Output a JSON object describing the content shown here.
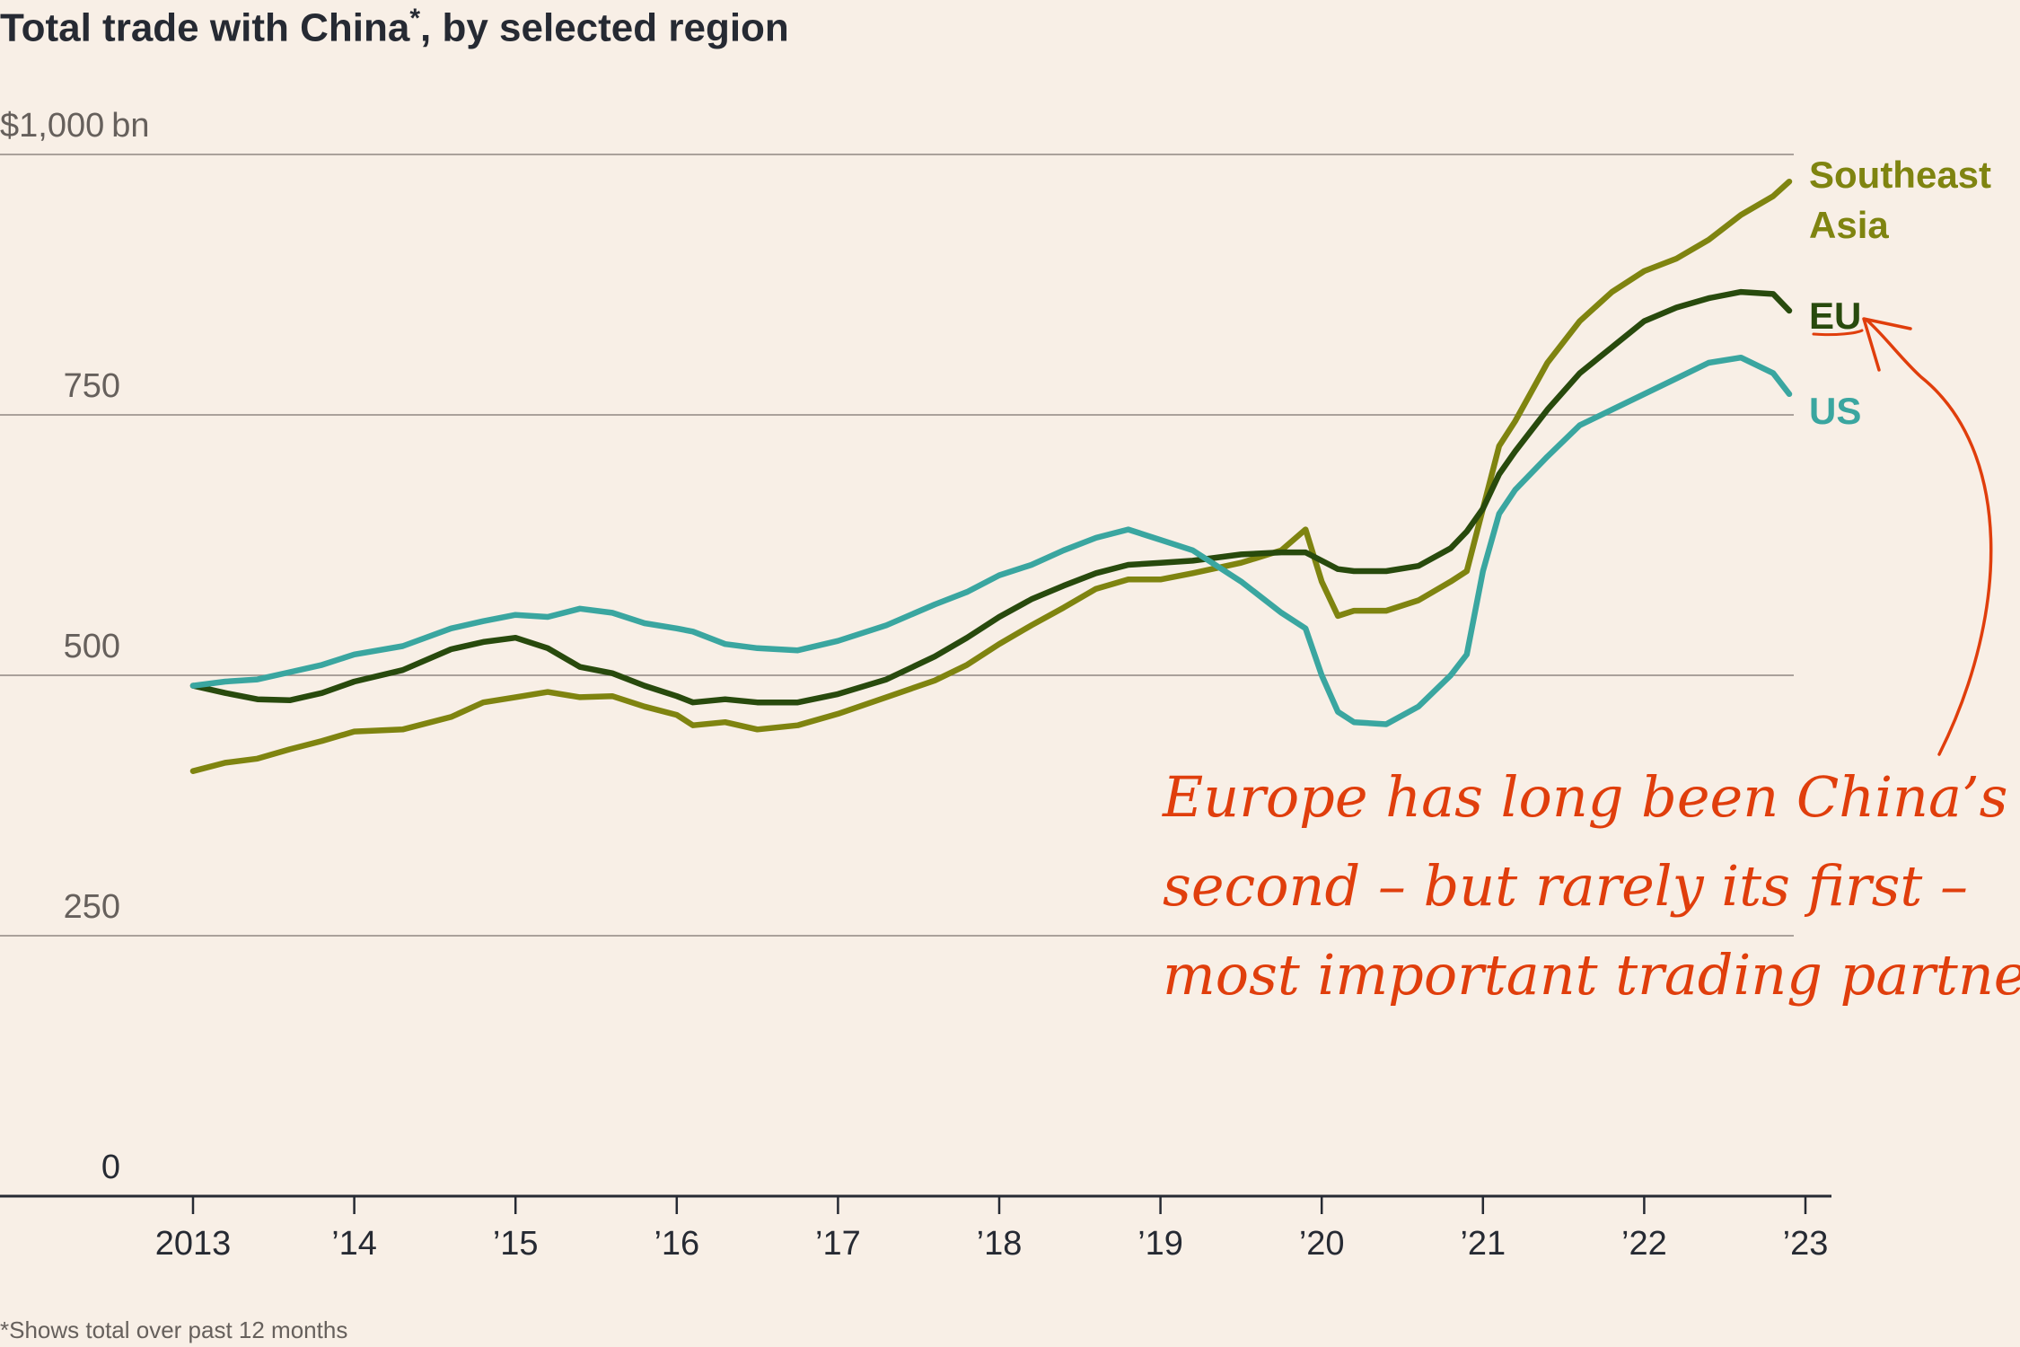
{
  "title": "Total trade with China",
  "title_mark": "*",
  "title_suffix": ", by selected region",
  "footnote": "*Shows total over past 12 months",
  "annotation_lines": [
    "Europe has long been China’s",
    "second – but rarely its first –",
    "most important trading partner"
  ],
  "colors": {
    "background": "#f8efe6",
    "southeast_asia": "#7f8410",
    "eu": "#284a0d",
    "us": "#3aa6a0",
    "annotation": "#e03e0c",
    "grid": "#8f8782",
    "axis": "#262a33",
    "tick_text": "#66605c"
  },
  "chart_data": {
    "type": "line",
    "title": "Total trade with China*, by selected region",
    "ylabel": "$bn",
    "xlabel": "",
    "ylim": [
      0,
      1000
    ],
    "xlim": [
      2013,
      2023
    ],
    "y_ticks": [
      {
        "value": 0,
        "label": "0"
      },
      {
        "value": 250,
        "label": "250"
      },
      {
        "value": 500,
        "label": "500"
      },
      {
        "value": 750,
        "label": "750"
      },
      {
        "value": 1000,
        "label": "$1,000",
        "unit": "bn"
      }
    ],
    "x_ticks": [
      {
        "value": 2013,
        "label": "2013"
      },
      {
        "value": 2014,
        "label": "’14"
      },
      {
        "value": 2015,
        "label": "’15"
      },
      {
        "value": 2016,
        "label": "’16"
      },
      {
        "value": 2017,
        "label": "’17"
      },
      {
        "value": 2018,
        "label": "’18"
      },
      {
        "value": 2019,
        "label": "’19"
      },
      {
        "value": 2020,
        "label": "’20"
      },
      {
        "value": 2021,
        "label": "’21"
      },
      {
        "value": 2022,
        "label": "’22"
      },
      {
        "value": 2023,
        "label": "’23"
      }
    ],
    "grid": true,
    "series": [
      {
        "name": "Southeast Asia",
        "label_lines": [
          "Southeast",
          "Asia"
        ],
        "color": "#7f8410",
        "x": [
          2013.0,
          2013.2,
          2013.4,
          2013.6,
          2013.8,
          2014.0,
          2014.3,
          2014.6,
          2014.8,
          2015.0,
          2015.2,
          2015.4,
          2015.6,
          2015.8,
          2016.0,
          2016.1,
          2016.3,
          2016.5,
          2016.75,
          2017.0,
          2017.3,
          2017.6,
          2017.8,
          2018.0,
          2018.2,
          2018.4,
          2018.6,
          2018.8,
          2019.0,
          2019.2,
          2019.5,
          2019.75,
          2019.9,
          2020.0,
          2020.1,
          2020.2,
          2020.4,
          2020.6,
          2020.8,
          2020.9,
          2021.0,
          2021.1,
          2021.2,
          2021.4,
          2021.6,
          2021.8,
          2022.0,
          2022.2,
          2022.4,
          2022.6,
          2022.8,
          2022.9
        ],
        "values": [
          408,
          416,
          420,
          429,
          437,
          446,
          448,
          460,
          474,
          479,
          484,
          479,
          480,
          470,
          462,
          452,
          455,
          448,
          452,
          463,
          479,
          495,
          510,
          530,
          548,
          565,
          583,
          592,
          592,
          598,
          608,
          620,
          640,
          590,
          557,
          562,
          562,
          572,
          590,
          600,
          660,
          720,
          744,
          800,
          840,
          868,
          888,
          900,
          918,
          942,
          960,
          974
        ]
      },
      {
        "name": "EU",
        "label_lines": [
          "EU"
        ],
        "color": "#284a0d",
        "x": [
          2013.0,
          2013.2,
          2013.4,
          2013.6,
          2013.8,
          2014.0,
          2014.3,
          2014.6,
          2014.8,
          2015.0,
          2015.2,
          2015.4,
          2015.6,
          2015.8,
          2016.0,
          2016.1,
          2016.3,
          2016.5,
          2016.75,
          2017.0,
          2017.3,
          2017.6,
          2017.8,
          2018.0,
          2018.2,
          2018.4,
          2018.6,
          2018.8,
          2019.0,
          2019.2,
          2019.5,
          2019.75,
          2019.9,
          2020.0,
          2020.1,
          2020.2,
          2020.4,
          2020.6,
          2020.8,
          2020.9,
          2021.0,
          2021.1,
          2021.2,
          2021.4,
          2021.6,
          2021.8,
          2022.0,
          2022.2,
          2022.4,
          2022.6,
          2022.8,
          2022.9
        ],
        "values": [
          490,
          483,
          477,
          476,
          483,
          494,
          505,
          525,
          532,
          536,
          526,
          508,
          502,
          490,
          480,
          474,
          477,
          474,
          474,
          482,
          496,
          518,
          536,
          556,
          573,
          586,
          598,
          606,
          608,
          610,
          616,
          618,
          618,
          610,
          602,
          600,
          600,
          605,
          622,
          638,
          660,
          693,
          715,
          755,
          790,
          815,
          840,
          853,
          862,
          868,
          866,
          850
        ]
      },
      {
        "name": "US",
        "label_lines": [
          "US"
        ],
        "color": "#3aa6a0",
        "x": [
          2013.0,
          2013.2,
          2013.4,
          2013.6,
          2013.8,
          2014.0,
          2014.3,
          2014.6,
          2014.8,
          2015.0,
          2015.2,
          2015.4,
          2015.6,
          2015.8,
          2016.0,
          2016.1,
          2016.3,
          2016.5,
          2016.75,
          2017.0,
          2017.3,
          2017.6,
          2017.8,
          2018.0,
          2018.2,
          2018.4,
          2018.6,
          2018.8,
          2019.0,
          2019.2,
          2019.5,
          2019.75,
          2019.9,
          2020.0,
          2020.1,
          2020.2,
          2020.4,
          2020.6,
          2020.8,
          2020.9,
          2021.0,
          2021.1,
          2021.2,
          2021.4,
          2021.6,
          2021.8,
          2022.0,
          2022.2,
          2022.4,
          2022.6,
          2022.8,
          2022.9
        ],
        "values": [
          490,
          494,
          496,
          503,
          510,
          520,
          528,
          545,
          552,
          558,
          556,
          564,
          560,
          550,
          545,
          542,
          530,
          526,
          524,
          533,
          548,
          568,
          580,
          596,
          606,
          620,
          632,
          640,
          630,
          620,
          590,
          560,
          545,
          500,
          465,
          455,
          453,
          470,
          500,
          520,
          600,
          655,
          678,
          710,
          740,
          755,
          770,
          785,
          800,
          805,
          790,
          770
        ]
      }
    ]
  }
}
